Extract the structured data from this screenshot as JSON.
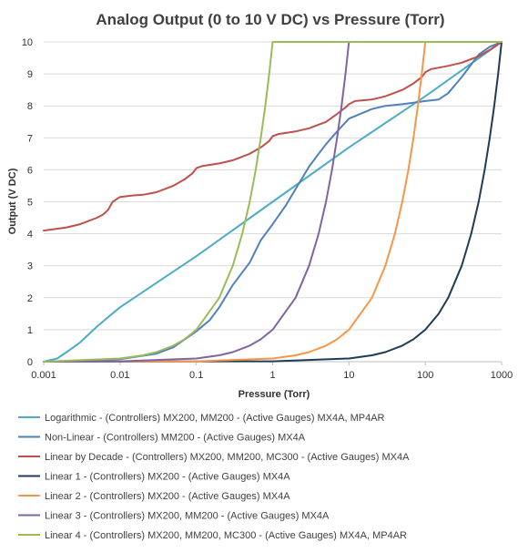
{
  "chart_data": {
    "type": "line",
    "title": "Analog Output (0 to 10 V DC) vs Pressure (Torr)",
    "xlabel": "Pressure (Torr)",
    "ylabel": "Output (V DC)",
    "x_scale": "log",
    "xlim": [
      0.001,
      1000
    ],
    "ylim": [
      0,
      10
    ],
    "x_tick_labels": [
      "0.001",
      "0.01",
      "0.1",
      "1",
      "10",
      "100",
      "1000"
    ],
    "y_tick_labels": [
      "0",
      "1",
      "2",
      "3",
      "4",
      "5",
      "6",
      "7",
      "8",
      "9",
      "10"
    ],
    "grid": "horizontal",
    "legend_position": "bottom",
    "series": [
      {
        "name": "Logarithmic - (Controllers) MX200, MM200 - (Active Gauges) MX4A, MP4AR",
        "color": "#4bacc6",
        "x": [
          0.001,
          0.0015,
          0.002,
          0.003,
          0.005,
          0.01,
          0.1,
          1,
          10,
          100,
          1000
        ],
        "y": [
          0,
          0.1,
          0.3,
          0.6,
          1.1,
          1.7,
          3.3,
          5,
          6.7,
          8.3,
          10
        ]
      },
      {
        "name": "Non-Linear - (Controllers) MM200 - (Active Gauges) MX4A",
        "color": "#4f81bd",
        "x": [
          0.001,
          0.01,
          0.03,
          0.05,
          0.1,
          0.15,
          0.2,
          0.3,
          0.5,
          0.7,
          1,
          1.5,
          2,
          3,
          4,
          5,
          7,
          10,
          20,
          30,
          50,
          70,
          100,
          150,
          200,
          300,
          500,
          700,
          1000
        ],
        "y": [
          0,
          0.08,
          0.25,
          0.45,
          0.95,
          1.3,
          1.7,
          2.4,
          3.1,
          3.8,
          4.3,
          4.9,
          5.4,
          6.1,
          6.5,
          6.8,
          7.2,
          7.6,
          7.9,
          8.0,
          8.05,
          8.1,
          8.15,
          8.2,
          8.4,
          8.9,
          9.6,
          9.85,
          10
        ]
      },
      {
        "name": "Linear by Decade - (Controllers) MX200, MM200, MC300 - (Active Gauges) MX4A",
        "color": "#c0504d",
        "x": [
          0.001,
          0.002,
          0.003,
          0.005,
          0.006,
          0.007,
          0.008,
          0.01,
          0.015,
          0.02,
          0.03,
          0.05,
          0.07,
          0.09,
          0.1,
          0.12,
          0.2,
          0.3,
          0.5,
          0.7,
          0.9,
          1,
          1.2,
          2,
          3,
          5,
          7,
          9,
          10,
          12,
          20,
          30,
          50,
          70,
          90,
          100,
          120,
          200,
          300,
          500,
          700,
          1000
        ],
        "y": [
          4.1,
          4.2,
          4.3,
          4.5,
          4.6,
          4.75,
          5.0,
          5.15,
          5.2,
          5.22,
          5.3,
          5.5,
          5.7,
          5.9,
          6.05,
          6.12,
          6.2,
          6.3,
          6.5,
          6.7,
          6.9,
          7.05,
          7.12,
          7.2,
          7.3,
          7.5,
          7.75,
          7.95,
          8.05,
          8.15,
          8.2,
          8.3,
          8.5,
          8.7,
          8.9,
          9.05,
          9.15,
          9.25,
          9.35,
          9.55,
          9.75,
          10
        ]
      },
      {
        "name": "Linear 1 - (Controllers) MX200 - (Active Gauges) MX4A",
        "color": "#1f3b5a",
        "x": [
          0.001,
          1,
          10,
          20,
          30,
          50,
          70,
          100,
          150,
          200,
          300,
          400,
          500,
          600,
          700,
          800,
          900,
          1000
        ],
        "y": [
          0,
          0.01,
          0.1,
          0.2,
          0.3,
          0.5,
          0.7,
          1.0,
          1.5,
          2.0,
          3.0,
          4.0,
          5.0,
          6.0,
          7.0,
          8.0,
          9.0,
          10.0
        ]
      },
      {
        "name": "Linear 2 - (Controllers) MX200 - (Active Gauges) MX4A",
        "color": "#f79646",
        "x": [
          0.001,
          0.1,
          1,
          2,
          3,
          5,
          7,
          10,
          20,
          30,
          40,
          50,
          60,
          70,
          80,
          90,
          100,
          1000
        ],
        "y": [
          0,
          0.01,
          0.1,
          0.2,
          0.3,
          0.5,
          0.7,
          1.0,
          2.0,
          3.0,
          4.0,
          5.0,
          6.0,
          7.0,
          8.0,
          9.0,
          10.0,
          10.0
        ]
      },
      {
        "name": "Linear 3 - (Controllers) MX200, MM200 - (Active Gauges) MX4A",
        "color": "#8064a2",
        "x": [
          0.001,
          0.01,
          0.1,
          0.2,
          0.3,
          0.5,
          0.7,
          1,
          2,
          3,
          4,
          5,
          6,
          7,
          8,
          9,
          10
        ],
        "y": [
          0,
          0.01,
          0.1,
          0.2,
          0.3,
          0.5,
          0.7,
          1.0,
          2.0,
          3.0,
          4.0,
          5.0,
          6.0,
          7.0,
          8.0,
          9.0,
          10.0
        ]
      },
      {
        "name": "Linear 4 - (Controllers) MX200, MM200, MC300 - (Active Gauges) MX4A, MP4AR",
        "color": "#9bbb59",
        "x": [
          0.001,
          0.01,
          0.02,
          0.03,
          0.05,
          0.07,
          0.1,
          0.2,
          0.3,
          0.4,
          0.5,
          0.6,
          0.7,
          0.8,
          0.9,
          1,
          1000
        ],
        "y": [
          0,
          0.1,
          0.2,
          0.3,
          0.5,
          0.7,
          1.0,
          2.0,
          3.0,
          4.0,
          5.0,
          6.0,
          7.0,
          8.0,
          9.0,
          10.0,
          10.0
        ]
      }
    ]
  }
}
